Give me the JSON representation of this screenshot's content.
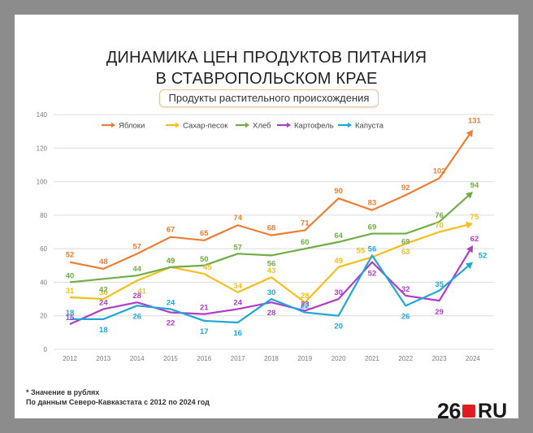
{
  "title_line1": "ДИНАМИКА ЦЕН ПРОДУКТОВ ПИТАНИЯ",
  "title_line2": "В СТАВРОПОЛЬСКОМ КРАЕ",
  "subtitle": "Продукты растительного происхождения",
  "footnote_line1": "* Значение в рублях",
  "footnote_line2": "По данным Северо-Кавказстата с 2012 по 2024 год",
  "logo": {
    "number": "26",
    "suffix": "RU",
    "square_color": "#e01b22"
  },
  "chart_data": {
    "type": "line",
    "title": "ДИНАМИКА ЦЕН ПРОДУКТОВ ПИТАНИЯ В СТАВРОПОЛЬСКОМ КРАЕ",
    "subtitle": "Продукты растительного происхождения",
    "xlabel": "",
    "ylabel": "",
    "x": [
      "2012",
      "2013",
      "2014",
      "2015",
      "2016",
      "2017",
      "2018",
      "2019",
      "2020",
      "2021",
      "2022",
      "2023",
      "2024"
    ],
    "ylim": [
      0,
      140
    ],
    "yticks": [
      0,
      20,
      40,
      60,
      80,
      100,
      120,
      140
    ],
    "grid": true,
    "legend_position": "top",
    "series": [
      {
        "name": "Яблоки",
        "color": "#ed7d31",
        "values": [
          52,
          48,
          57,
          67,
          65,
          74,
          68,
          71,
          90,
          83,
          92,
          102,
          131
        ]
      },
      {
        "name": "Сахар-песок",
        "color": "#f5be1a",
        "values": [
          31,
          30,
          41,
          49,
          45,
          34,
          43,
          28,
          49,
          55,
          63,
          70,
          75
        ]
      },
      {
        "name": "Хлеб",
        "color": "#70ad47",
        "values": [
          40,
          42,
          44,
          49,
          50,
          57,
          56,
          60,
          64,
          69,
          69,
          76,
          94
        ]
      },
      {
        "name": "Картофель",
        "color": "#b03cc8",
        "values": [
          15,
          24,
          28,
          22,
          21,
          24,
          28,
          23,
          30,
          52,
          32,
          29,
          62
        ]
      },
      {
        "name": "Капуста",
        "color": "#1ea7d8",
        "values": [
          18,
          18,
          26,
          24,
          17,
          16,
          30,
          22,
          20,
          56,
          26,
          35,
          52
        ]
      }
    ]
  }
}
